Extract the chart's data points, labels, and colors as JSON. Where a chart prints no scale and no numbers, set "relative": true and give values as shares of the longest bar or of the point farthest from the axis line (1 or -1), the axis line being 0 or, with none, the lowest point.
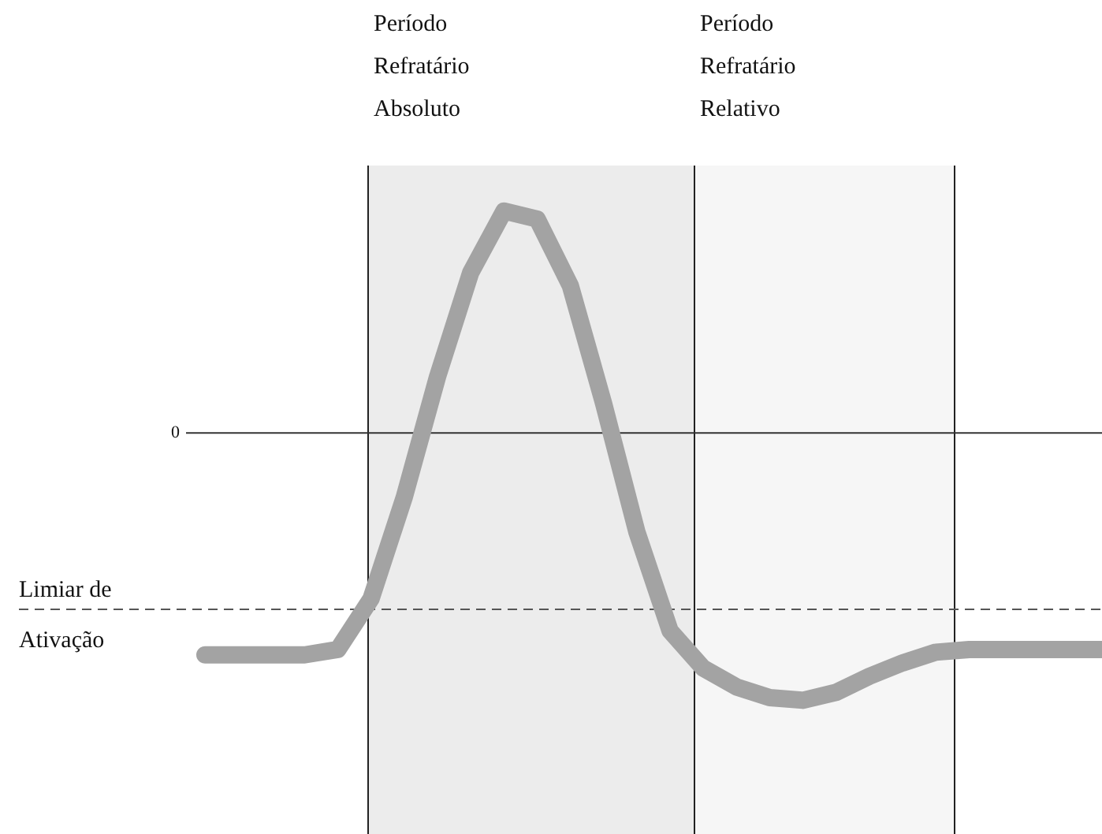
{
  "chart_data": {
    "type": "line",
    "relative": true,
    "marker": "none",
    "line_style": "solid",
    "categories": [
      null,
      null,
      null,
      null,
      null,
      null,
      null,
      null,
      null,
      null,
      null,
      null,
      null,
      null,
      null,
      null,
      null,
      null,
      null,
      null,
      null,
      null,
      null,
      null,
      null,
      null,
      null,
      null
    ],
    "series": [
      {
        "color": "#a3a3a3",
        "values": [
          -0.83,
          -0.83,
          -0.83,
          -0.83,
          -0.81,
          -0.62,
          -0.24,
          0.21,
          0.6,
          0.83,
          0.8,
          0.55,
          0.11,
          -0.37,
          -0.74,
          -0.88,
          -0.95,
          -0.99,
          -1,
          -0.97,
          -0.91,
          -0.86,
          -0.82,
          -0.81,
          -0.81,
          -0.81,
          -0.81,
          -0.81
        ]
      }
    ],
    "ref_lines": [
      {
        "axis": "y",
        "value": 0,
        "label": "0",
        "color": "#333333",
        "line_style": "solid"
      },
      {
        "axis": "y",
        "value": -0.66,
        "label": "Limiar de\nAtivação",
        "color": "#555555",
        "line_style": "dashed"
      }
    ],
    "annotations": [
      "Período\nRefratário\nAbsoluto",
      "Período\nRefratário\nRelativo"
    ]
  }
}
